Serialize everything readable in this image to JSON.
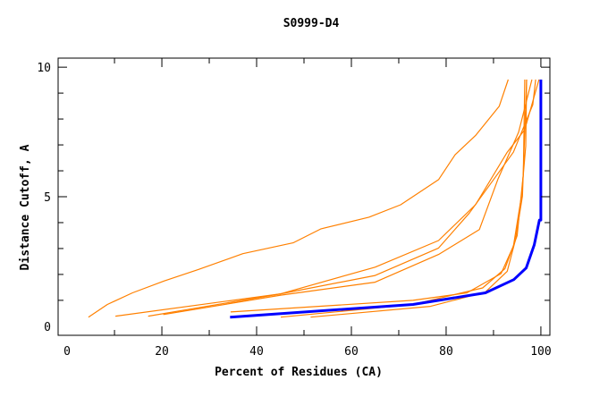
{
  "chart_data": {
    "type": "line",
    "title": "S0999-D4",
    "xlabel": "Percent of Residues (CA)",
    "ylabel": "Distance Cutoff, A",
    "xlim": [
      -1.9,
      101.9
    ],
    "ylim": [
      -0.35,
      10.35
    ],
    "xticks": [
      0,
      20,
      40,
      60,
      80,
      100
    ],
    "yticks": [
      0,
      5,
      10
    ],
    "grid": false,
    "colors": {
      "highlight": "#0000ff",
      "others": "#ff8000"
    },
    "series": [
      {
        "highlight": false,
        "points": [
          [
            4.5,
            0.35
          ],
          [
            8.5,
            0.84
          ],
          [
            13.8,
            1.29
          ],
          [
            20.5,
            1.75
          ],
          [
            27.7,
            2.19
          ],
          [
            37.1,
            2.8
          ],
          [
            47.7,
            3.22
          ],
          [
            53.6,
            3.76
          ],
          [
            63.7,
            4.21
          ],
          [
            70.4,
            4.69
          ],
          [
            78.4,
            5.66
          ],
          [
            81.9,
            6.62
          ],
          [
            86.2,
            7.36
          ],
          [
            91.2,
            8.49
          ],
          [
            93.1,
            9.52
          ]
        ]
      },
      {
        "highlight": false,
        "points": [
          [
            10.2,
            0.39
          ],
          [
            45.1,
            1.25
          ],
          [
            65.0,
            2.28
          ],
          [
            78.4,
            3.31
          ],
          [
            86.2,
            4.69
          ],
          [
            92.9,
            6.72
          ],
          [
            96.6,
            7.59
          ],
          [
            99.6,
            9.52
          ]
        ]
      },
      {
        "highlight": false,
        "points": [
          [
            17.1,
            0.39
          ],
          [
            45.1,
            1.25
          ],
          [
            65.0,
            1.96
          ],
          [
            78.4,
            3.02
          ],
          [
            84.9,
            4.37
          ],
          [
            94.2,
            6.72
          ],
          [
            98.3,
            8.55
          ],
          [
            98.9,
            9.52
          ]
        ]
      },
      {
        "highlight": false,
        "points": [
          [
            20.3,
            0.45
          ],
          [
            45.1,
            1.2
          ],
          [
            65.0,
            1.7
          ],
          [
            78.4,
            2.77
          ],
          [
            87.0,
            3.73
          ],
          [
            90.9,
            5.66
          ],
          [
            95.3,
            7.49
          ],
          [
            98.1,
            9.52
          ]
        ]
      },
      {
        "highlight": false,
        "points": [
          [
            34.5,
            0.55
          ],
          [
            73.0,
            1.0
          ],
          [
            84.4,
            1.29
          ],
          [
            91.6,
            2.03
          ],
          [
            94.2,
            3.09
          ],
          [
            95.9,
            5.02
          ],
          [
            96.8,
            6.95
          ],
          [
            97.0,
            9.52
          ]
        ]
      },
      {
        "highlight": false,
        "points": [
          [
            45.1,
            0.35
          ],
          [
            73.0,
            0.84
          ],
          [
            87.7,
            1.48
          ],
          [
            92.4,
            2.22
          ],
          [
            95.0,
            3.5
          ],
          [
            96.3,
            5.88
          ],
          [
            96.6,
            9.52
          ]
        ]
      },
      {
        "highlight": false,
        "points": [
          [
            51.4,
            0.35
          ],
          [
            76.7,
            0.77
          ],
          [
            88.3,
            1.32
          ],
          [
            92.9,
            2.12
          ],
          [
            94.6,
            3.31
          ],
          [
            96.1,
            5.02
          ],
          [
            97.0,
            9.52
          ]
        ]
      },
      {
        "highlight": true,
        "points": [
          [
            34.4,
            0.35
          ],
          [
            73.0,
            0.84
          ],
          [
            88.3,
            1.29
          ],
          [
            94.3,
            1.8
          ],
          [
            96.9,
            2.25
          ],
          [
            98.6,
            3.14
          ],
          [
            99.7,
            4.1
          ],
          [
            100,
            4.1
          ],
          [
            100,
            9.52
          ]
        ]
      }
    ]
  }
}
